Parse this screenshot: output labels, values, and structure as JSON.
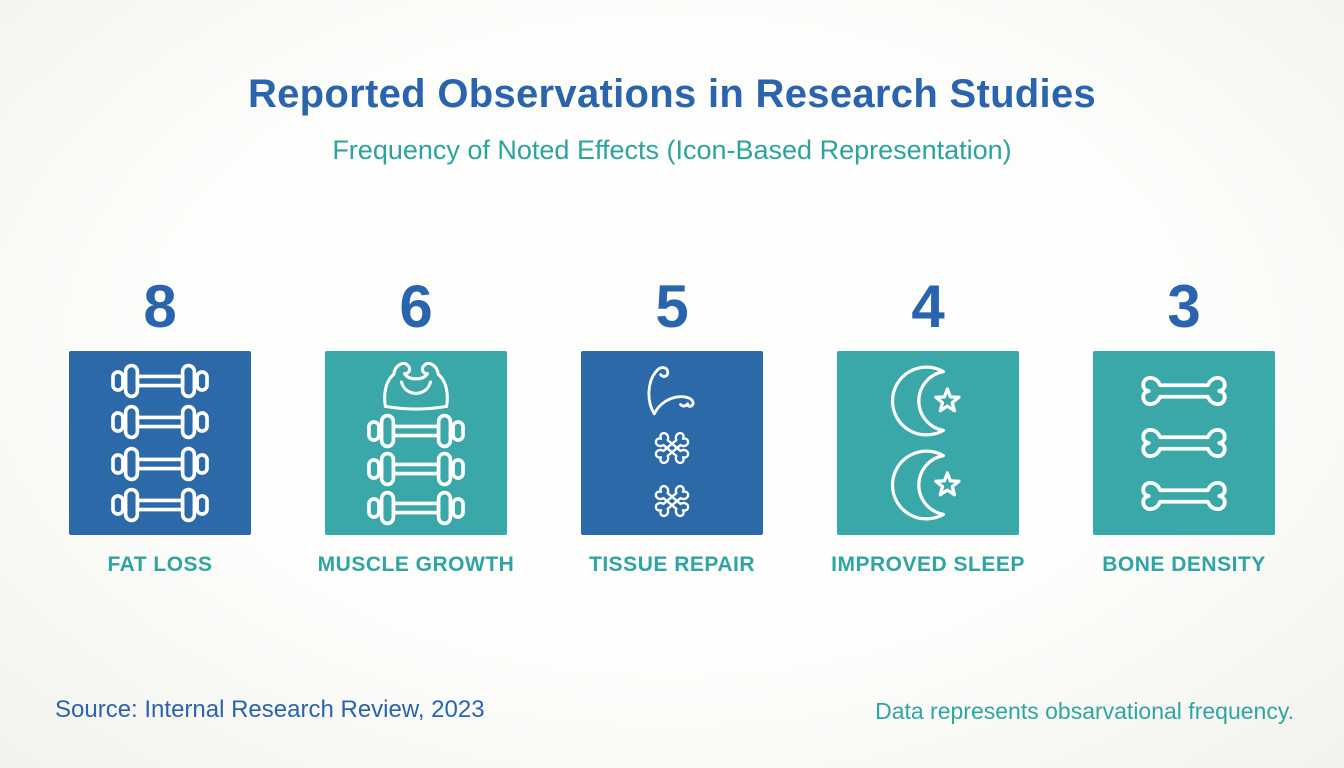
{
  "header": {
    "title": "Reported Observations in Research Studies",
    "subtitle": "Frequency of Noted Effects (Icon-Based Representation)"
  },
  "tiles": [
    {
      "count": "8",
      "label": "FAT LOSS",
      "box_color": "#2b69a9",
      "icons": [
        "dumbbell",
        "dumbbell",
        "dumbbell",
        "dumbbell"
      ]
    },
    {
      "count": "6",
      "label": "MUSCLE GROWTH",
      "box_color": "#3aa7a8",
      "icons": [
        "muscle",
        "dumbbell",
        "dumbbell",
        "dumbbell"
      ]
    },
    {
      "count": "5",
      "label": "TISSUE REPAIR",
      "box_color": "#2b69a9",
      "icons": [
        "flexed-arm",
        "crossed-bones",
        "crossed-bones"
      ]
    },
    {
      "count": "4",
      "label": "IMPROVED SLEEP",
      "box_color": "#3aa7a8",
      "icons": [
        "moon-star",
        "moon-star"
      ]
    },
    {
      "count": "3",
      "label": "BONE DENSITY",
      "box_color": "#3aa7a8",
      "icons": [
        "bone",
        "bone",
        "bone"
      ]
    }
  ],
  "footer": {
    "source": "Source: Internal Research Review, 2023",
    "note": "Data represents obsarvational frequency."
  },
  "colors": {
    "title_blue": "#2a64ad",
    "teal_text": "#2fa5a3",
    "box_blue": "#2b69a9",
    "box_teal": "#3aa7a8",
    "icon_stroke": "#ffffff",
    "background": "#fbfbf8"
  },
  "chart_data": {
    "type": "bar",
    "variant": "icon-pictograph",
    "title": "Reported Observations in Research Studies",
    "subtitle": "Frequency of Noted Effects (Icon-Based Representation)",
    "categories": [
      "FAT LOSS",
      "MUSCLE GROWTH",
      "TISSUE REPAIR",
      "IMPROVED SLEEP",
      "BONE DENSITY"
    ],
    "values": [
      8,
      6,
      5,
      4,
      3
    ],
    "legend_position": "none",
    "grid": false,
    "source": "Source: Internal Research Review, 2023",
    "note": "Data represents obsarvational frequency."
  }
}
